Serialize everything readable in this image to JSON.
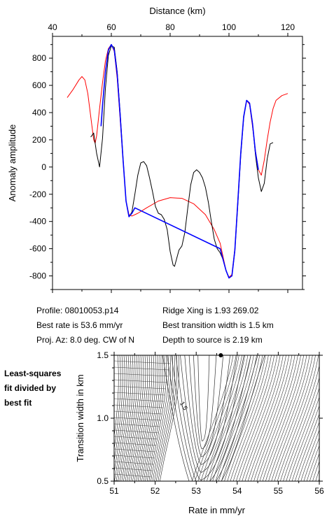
{
  "chart_data": [
    {
      "type": "line",
      "xlabel": "Distance (km)",
      "ylabel": "Anomaly amplitude",
      "xlim": [
        40,
        125
      ],
      "ylim": [
        -900,
        960
      ],
      "xticks": [
        "40",
        "60",
        "80",
        "100",
        "120"
      ],
      "yticks": [
        "800",
        "600",
        "400",
        "200",
        "0",
        "-200",
        "-400",
        "-600",
        "-800"
      ],
      "series": [
        {
          "color": "#ff0000",
          "points": [
            [
              45,
              510
            ],
            [
              47,
              570
            ],
            [
              49,
              640
            ],
            [
              50,
              665
            ],
            [
              51,
              640
            ],
            [
              52,
              540
            ],
            [
              53,
              370
            ],
            [
              54,
              200
            ],
            [
              54.5,
              175
            ],
            [
              55,
              230
            ],
            [
              56,
              430
            ],
            [
              57,
              620
            ],
            [
              58,
              780
            ],
            [
              59,
              870
            ],
            [
              60,
              900
            ],
            [
              61,
              850
            ],
            [
              62,
              650
            ],
            [
              63,
              350
            ],
            [
              64,
              40
            ],
            [
              65,
              -250
            ],
            [
              66,
              -350
            ],
            [
              67,
              -360
            ],
            [
              69,
              -340
            ],
            [
              72,
              -300
            ],
            [
              76,
              -250
            ],
            [
              80,
              -225
            ],
            [
              84,
              -230
            ],
            [
              88,
              -270
            ],
            [
              92,
              -350
            ],
            [
              95,
              -460
            ],
            [
              97,
              -560
            ],
            [
              98,
              -660
            ],
            [
              99,
              -760
            ],
            [
              100,
              -810
            ],
            [
              101,
              -790
            ],
            [
              102,
              -600
            ],
            [
              103,
              -250
            ],
            [
              104,
              100
            ],
            [
              105,
              370
            ],
            [
              106,
              490
            ],
            [
              107,
              460
            ],
            [
              108,
              300
            ],
            [
              109,
              120
            ],
            [
              110,
              -20
            ],
            [
              111,
              -60
            ],
            [
              112,
              50
            ],
            [
              113,
              200
            ],
            [
              114,
              330
            ],
            [
              115,
              430
            ],
            [
              116,
              490
            ],
            [
              118,
              525
            ],
            [
              120,
              540
            ]
          ]
        },
        {
          "color": "#000000",
          "points": [
            [
              53,
              220
            ],
            [
              54,
              250
            ],
            [
              55,
              100
            ],
            [
              56,
              0
            ],
            [
              57,
              210
            ],
            [
              58,
              580
            ],
            [
              59,
              820
            ],
            [
              60,
              890
            ],
            [
              61,
              880
            ],
            [
              62,
              700
            ],
            [
              63,
              400
            ],
            [
              64,
              60
            ],
            [
              65,
              -250
            ],
            [
              66,
              -365
            ],
            [
              67,
              -330
            ],
            [
              68,
              -200
            ],
            [
              69,
              -60
            ],
            [
              70,
              30
            ],
            [
              71,
              40
            ],
            [
              72,
              10
            ],
            [
              73,
              -80
            ],
            [
              74,
              -180
            ],
            [
              75,
              -290
            ],
            [
              76,
              -340
            ],
            [
              77,
              -350
            ],
            [
              78,
              -385
            ],
            [
              79,
              -460
            ],
            [
              80,
              -620
            ],
            [
              81,
              -720
            ],
            [
              81.5,
              -730
            ],
            [
              82,
              -690
            ],
            [
              83,
              -610
            ],
            [
              84,
              -580
            ],
            [
              85,
              -480
            ],
            [
              86,
              -300
            ],
            [
              87,
              -130
            ],
            [
              88,
              -40
            ],
            [
              89,
              -20
            ],
            [
              90,
              -40
            ],
            [
              91,
              -80
            ],
            [
              92,
              -150
            ],
            [
              93,
              -260
            ],
            [
              94,
              -400
            ],
            [
              95,
              -530
            ],
            [
              96,
              -600
            ],
            [
              97,
              -630
            ],
            [
              98,
              -680
            ],
            [
              99,
              -760
            ],
            [
              100,
              -815
            ],
            [
              101,
              -800
            ],
            [
              102,
              -620
            ],
            [
              103,
              -280
            ],
            [
              104,
              80
            ],
            [
              105,
              360
            ],
            [
              106,
              490
            ],
            [
              107,
              470
            ],
            [
              108,
              320
            ],
            [
              109,
              90
            ],
            [
              110,
              -80
            ],
            [
              111,
              -180
            ],
            [
              112,
              -120
            ],
            [
              113,
              60
            ],
            [
              114,
              170
            ],
            [
              115,
              180
            ]
          ]
        },
        {
          "color": "#0000ff",
          "points": [
            [
              56.5,
              300
            ],
            [
              57,
              450
            ],
            [
              58,
              700
            ],
            [
              59,
              860
            ],
            [
              60,
              900
            ],
            [
              61,
              860
            ],
            [
              62,
              680
            ],
            [
              63,
              380
            ],
            [
              64,
              50
            ],
            [
              65,
              -250
            ],
            [
              66,
              -365
            ],
            [
              67,
              -340
            ],
            [
              68,
              -300
            ],
            [
              97,
              -600
            ],
            [
              98,
              -680
            ],
            [
              99,
              -760
            ],
            [
              100,
              -815
            ],
            [
              101,
              -800
            ],
            [
              102,
              -610
            ],
            [
              103,
              -260
            ],
            [
              104,
              100
            ],
            [
              105,
              370
            ],
            [
              106,
              490
            ],
            [
              107,
              470
            ],
            [
              108,
              320
            ],
            [
              109,
              110
            ],
            [
              110,
              -20
            ]
          ]
        }
      ]
    },
    {
      "type": "heatmap",
      "xlabel": "Rate in mm/yr",
      "ylabel": "Transition width in km",
      "xlim": [
        51,
        56
      ],
      "ylim": [
        0.5,
        1.5
      ],
      "xticks": [
        "51",
        "52",
        "53",
        "54",
        "55",
        "56"
      ],
      "yticks": [
        "0.5",
        "1.0",
        "1.5"
      ],
      "contour_label": "1.5",
      "best_fit_marker": {
        "x": 53.6,
        "y": 1.5
      }
    }
  ],
  "info": {
    "profile": "Profile: 08010053.p14",
    "best_rate": "Best rate is 53.6 mm/yr",
    "proj_az": "Proj. Az: 8.0 deg. CW of N",
    "ridge_xing": "Ridge Xing is 1.93 269.02",
    "best_transition": "Best transition width is 1.5 km",
    "depth": "Depth to source is    2.19 km"
  },
  "side_note": {
    "line1": "Least-squares",
    "line2": "fit divided by",
    "line3": "best fit"
  }
}
